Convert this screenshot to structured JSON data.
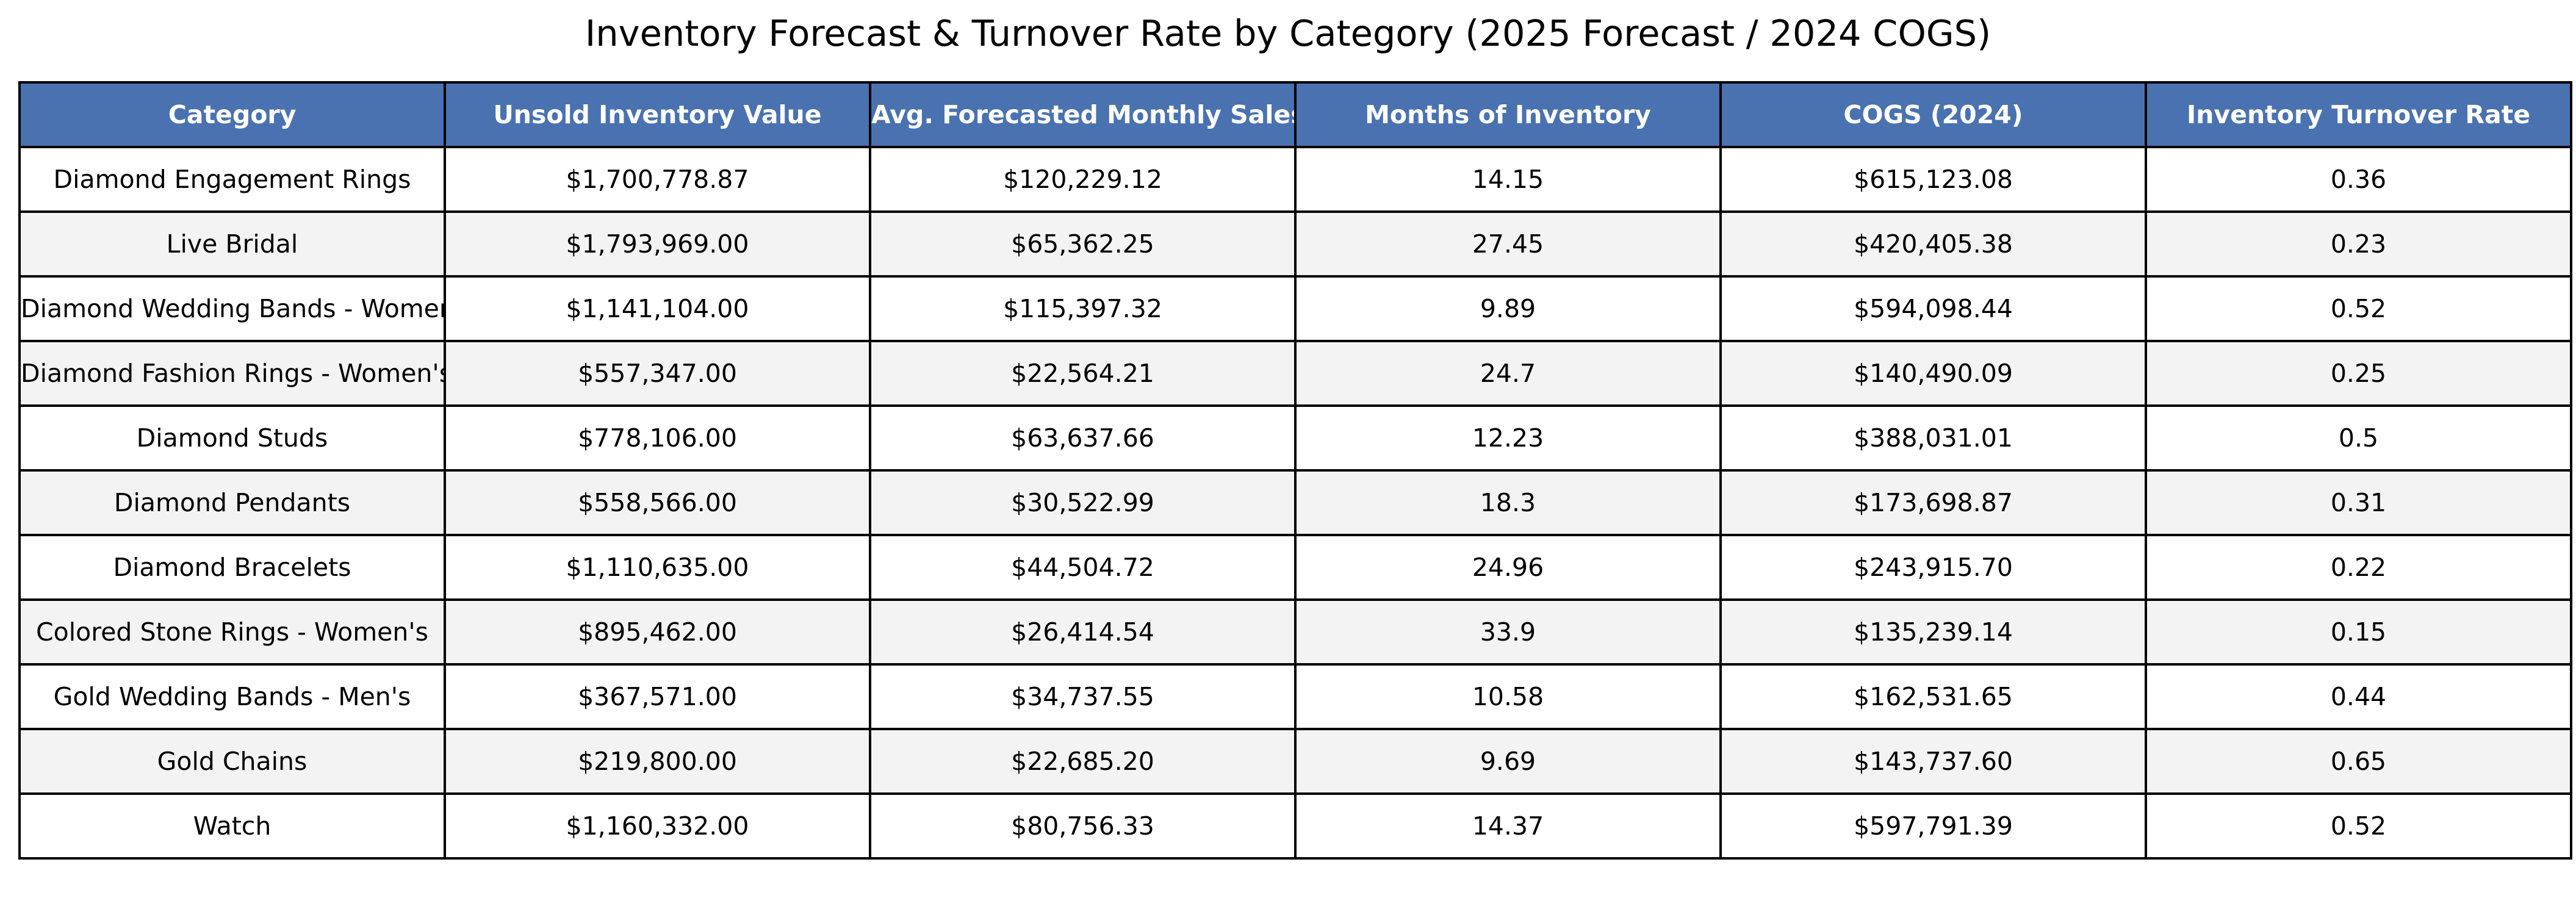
{
  "chart_data": {
    "type": "table",
    "title": "Inventory Forecast & Turnover Rate by Category (2025 Forecast / 2024 COGS)",
    "columns": [
      "Category",
      "Unsold Inventory Value",
      "Avg. Forecasted Monthly Sales",
      "Months of Inventory",
      "COGS (2024)",
      "Inventory Turnover Rate"
    ],
    "rows": [
      [
        "Diamond Engagement Rings",
        "$1,700,778.87",
        "$120,229.12",
        "14.15",
        "$615,123.08",
        "0.36"
      ],
      [
        "Live Bridal",
        "$1,793,969.00",
        "$65,362.25",
        "27.45",
        "$420,405.38",
        "0.23"
      ],
      [
        "Diamond Wedding Bands - Women's",
        "$1,141,104.00",
        "$115,397.32",
        "9.89",
        "$594,098.44",
        "0.52"
      ],
      [
        "Diamond Fashion Rings - Women's",
        "$557,347.00",
        "$22,564.21",
        "24.7",
        "$140,490.09",
        "0.25"
      ],
      [
        "Diamond Studs",
        "$778,106.00",
        "$63,637.66",
        "12.23",
        "$388,031.01",
        "0.5"
      ],
      [
        "Diamond Pendants",
        "$558,566.00",
        "$30,522.99",
        "18.3",
        "$173,698.87",
        "0.31"
      ],
      [
        "Diamond Bracelets",
        "$1,110,635.00",
        "$44,504.72",
        "24.96",
        "$243,915.70",
        "0.22"
      ],
      [
        "Colored Stone Rings - Women's",
        "$895,462.00",
        "$26,414.54",
        "33.9",
        "$135,239.14",
        "0.15"
      ],
      [
        "Gold Wedding Bands - Men's",
        "$367,571.00",
        "$34,737.55",
        "10.58",
        "$162,531.65",
        "0.44"
      ],
      [
        "Gold Chains",
        "$219,800.00",
        "$22,685.20",
        "9.69",
        "$143,737.60",
        "0.65"
      ],
      [
        "Watch",
        "$1,160,332.00",
        "$80,756.33",
        "14.37",
        "$597,791.39",
        "0.52"
      ]
    ],
    "colors": {
      "header_bg": "#4a72b0",
      "header_text": "#ffffff",
      "row_alt_bg": "#f3f3f3",
      "row_bg": "#ffffff",
      "border": "#000000"
    }
  }
}
